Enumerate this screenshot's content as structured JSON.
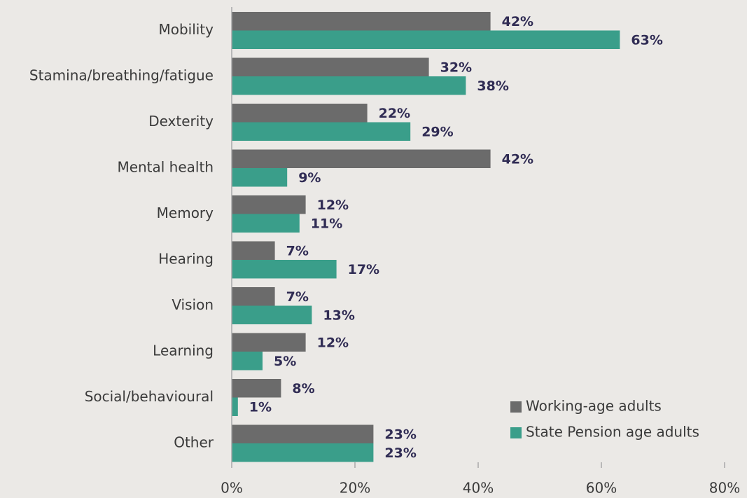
{
  "chart_data": {
    "type": "hbar",
    "categories": [
      "Mobility",
      "Stamina/breathing/fatigue",
      "Dexterity",
      "Mental health",
      "Memory",
      "Hearing",
      "Vision",
      "Learning",
      "Social/behavioural",
      "Other"
    ],
    "series": [
      {
        "name": "Working-age adults",
        "color": "#6b6b6b",
        "values": [
          42,
          32,
          22,
          42,
          12,
          7,
          7,
          12,
          8,
          23
        ],
        "value_labels": [
          "42%",
          "32%",
          "22%",
          "42%",
          "12%",
          "7%",
          "7%",
          "12%",
          "8%",
          "23%"
        ]
      },
      {
        "name": "State Pension age adults",
        "color": "#3a9e8a",
        "values": [
          63,
          38,
          29,
          9,
          11,
          17,
          13,
          5,
          1,
          23
        ],
        "value_labels": [
          "63%",
          "38%",
          "29%",
          "9%",
          "11%",
          "17%",
          "13%",
          "5%",
          "1%",
          "23%"
        ]
      }
    ],
    "xlim": [
      0,
      80
    ],
    "xticks": [
      {
        "value": 0,
        "label": "0%"
      },
      {
        "value": 20,
        "label": "20%"
      },
      {
        "value": 40,
        "label": "40%"
      },
      {
        "value": 60,
        "label": "60%"
      },
      {
        "value": 80,
        "label": "80%"
      }
    ],
    "legend": "lower right"
  }
}
